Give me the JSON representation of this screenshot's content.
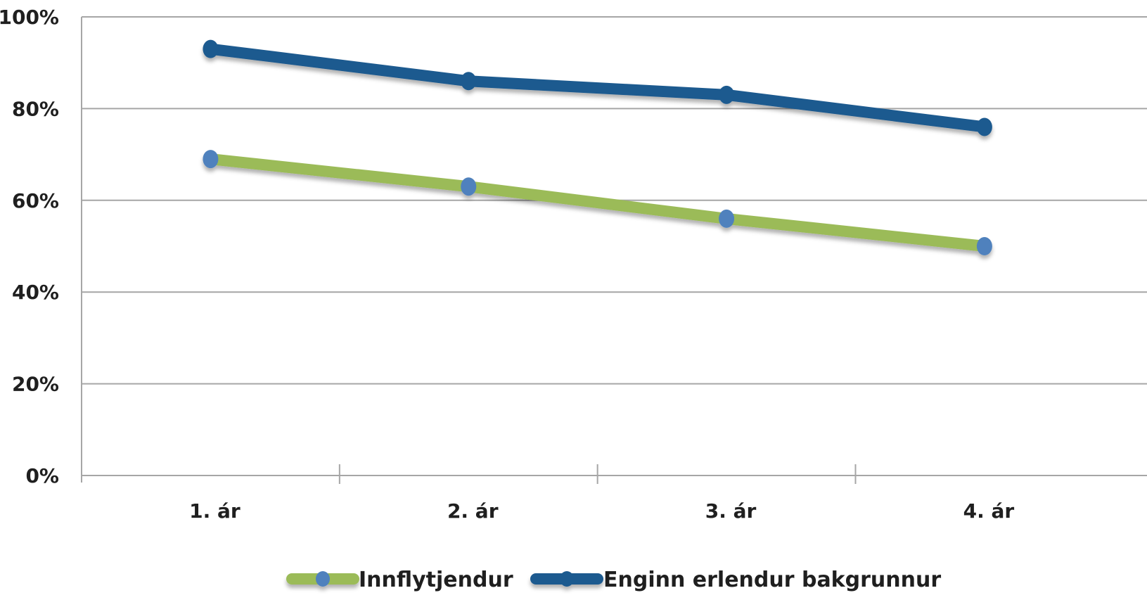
{
  "chart_data": {
    "type": "line",
    "title": "",
    "xlabel": "",
    "ylabel": "",
    "categories": [
      "1. ár",
      "2. ár",
      "3. ár",
      "4. ár"
    ],
    "ylim": [
      0,
      100
    ],
    "yticks": [
      "0%",
      "20%",
      "40%",
      "60%",
      "80%",
      "100%"
    ],
    "ytick_values": [
      0,
      20,
      40,
      60,
      80,
      100
    ],
    "grid": true,
    "legend_position": "bottom",
    "series": [
      {
        "name": "Innflytjendur",
        "values": [
          69,
          63,
          56,
          50
        ],
        "line_color": "#9bbb59",
        "marker_color": "#4f81bd"
      },
      {
        "name": "Enginn erlendur bakgrunnur",
        "values": [
          93,
          86,
          83,
          76
        ],
        "line_color": "#1f5a8f",
        "marker_color": "#1f5a8f"
      }
    ]
  }
}
